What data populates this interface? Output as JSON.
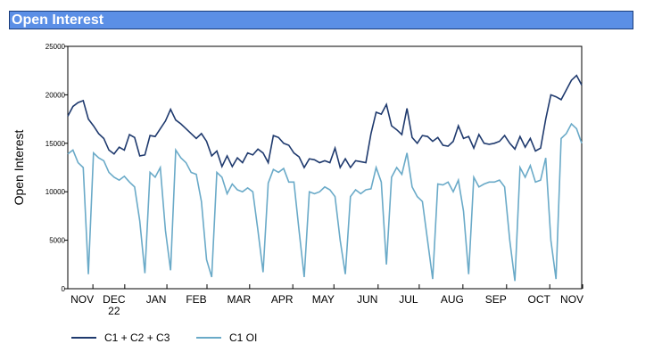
{
  "header": {
    "title": "Open Interest"
  },
  "chart_data": {
    "type": "line",
    "ylabel": "Open Interest",
    "ylim": [
      0,
      25000
    ],
    "yticks": [
      0,
      5000,
      10000,
      15000,
      20000,
      25000
    ],
    "xlim": [
      0,
      100
    ],
    "xticks": [
      {
        "value": 2.8,
        "label": "NOV"
      },
      {
        "value": 9.0,
        "label": "DEC 22"
      },
      {
        "value": 17.2,
        "label": "JAN"
      },
      {
        "value": 25,
        "label": "FEB"
      },
      {
        "value": 33.3,
        "label": "MAR"
      },
      {
        "value": 41.7,
        "label": "APR"
      },
      {
        "value": 49.7,
        "label": "MAY"
      },
      {
        "value": 58.3,
        "label": "JUN"
      },
      {
        "value": 66.3,
        "label": "JUL"
      },
      {
        "value": 74.8,
        "label": "AUG"
      },
      {
        "value": 83.3,
        "label": "SEP"
      },
      {
        "value": 91.7,
        "label": "OCT"
      },
      {
        "value": 98.1,
        "label": "NOV"
      }
    ],
    "legend": "bottom-left",
    "series": [
      {
        "name": "C1 + C2 + C3",
        "color": "#1f3a6e",
        "values": [
          17800,
          18800,
          19200,
          19400,
          17500,
          16800,
          16000,
          15500,
          14300,
          13900,
          14600,
          14300,
          15900,
          15600,
          13700,
          13800,
          15800,
          15700,
          16500,
          17300,
          18500,
          17400,
          17000,
          16500,
          16000,
          15500,
          16000,
          15200,
          13700,
          14200,
          12600,
          13700,
          12600,
          13500,
          13000,
          14000,
          13800,
          14400,
          14000,
          13000,
          15800,
          15600,
          15000,
          14800,
          14000,
          13600,
          12500,
          13400,
          13300,
          13000,
          13200,
          13000,
          14500,
          12500,
          13400,
          12500,
          13200,
          13100,
          13000,
          16000,
          18200,
          18000,
          19000,
          16800,
          16400,
          15900,
          18600,
          15600,
          15000,
          15800,
          15700,
          15200,
          15600,
          14800,
          14700,
          15200,
          16800,
          15500,
          15700,
          14500,
          15900,
          15000,
          14900,
          15000,
          15200,
          15800,
          15000,
          14400,
          15700,
          14600,
          15500,
          14200,
          14500,
          17500,
          20000,
          19800,
          19500,
          20500,
          21500,
          22000,
          21000
        ]
      },
      {
        "name": "C1 OI",
        "color": "#6aaac8",
        "values": [
          13900,
          14300,
          13000,
          12500,
          1500,
          14000,
          13500,
          13200,
          12000,
          11500,
          11200,
          11600,
          11000,
          10500,
          7000,
          1600,
          12000,
          11500,
          12500,
          6000,
          1900,
          14300,
          13500,
          13000,
          12000,
          11800,
          9000,
          3000,
          1200,
          12000,
          11500,
          9800,
          10800,
          10200,
          10000,
          10400,
          10000,
          6000,
          1700,
          10900,
          12300,
          12000,
          12400,
          11000,
          11000,
          6000,
          1200,
          10000,
          9800,
          10000,
          10500,
          10200,
          9500,
          5000,
          1500,
          9500,
          10200,
          9800,
          10200,
          10300,
          12500,
          11000,
          2500,
          11500,
          12500,
          11800,
          14000,
          10500,
          9500,
          9000,
          5000,
          1000,
          10800,
          10700,
          11000,
          10000,
          11200,
          8000,
          1500,
          11500,
          10500,
          10800,
          11000,
          11000,
          11200,
          10500,
          5000,
          800,
          12500,
          11500,
          12700,
          11000,
          11200,
          13500,
          5000,
          1000,
          15500,
          16000,
          17000,
          16500,
          15000
        ]
      }
    ]
  }
}
